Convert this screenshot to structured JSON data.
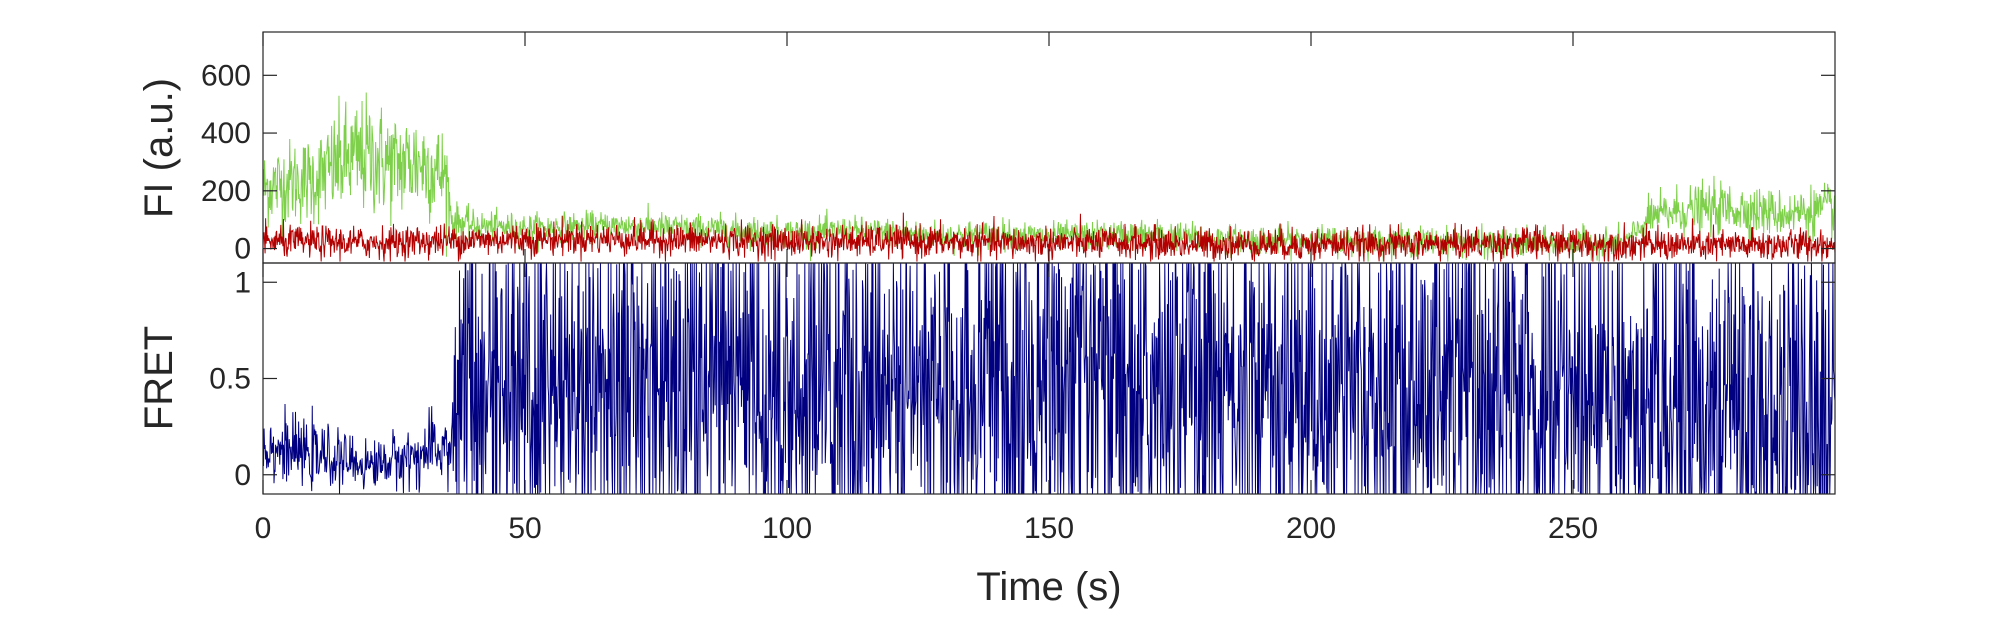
{
  "chart_data": [
    {
      "type": "line",
      "ylabel": "FI (a.u.)",
      "xlim": [
        0,
        300
      ],
      "ylim": [
        -50,
        750
      ],
      "yticks": [
        0,
        200,
        400,
        600
      ],
      "ytick_labels": [
        "0",
        "200",
        "400",
        "600"
      ],
      "grid": false,
      "colors": {
        "donor": "#7ed04b",
        "acceptor": "#b30000"
      },
      "series": [
        {
          "role": "donor",
          "x": [
            0,
            5,
            10,
            15,
            20,
            25,
            30,
            35,
            36,
            40,
            50,
            60,
            70,
            80,
            90,
            100,
            110,
            120,
            130,
            140,
            150,
            160,
            170,
            180,
            190,
            200,
            210,
            220,
            230,
            240,
            250,
            260,
            265,
            270,
            280,
            290,
            300
          ],
          "values": [
            210,
            230,
            240,
            300,
            320,
            290,
            300,
            250,
            100,
            80,
            70,
            75,
            80,
            70,
            65,
            55,
            60,
            55,
            45,
            50,
            40,
            45,
            50,
            35,
            30,
            30,
            25,
            25,
            20,
            15,
            20,
            20,
            110,
            130,
            140,
            120,
            140
          ]
        },
        {
          "role": "acceptor",
          "x": [
            0,
            20,
            40,
            60,
            80,
            100,
            120,
            140,
            160,
            180,
            200,
            220,
            240,
            260,
            280,
            300
          ],
          "values": [
            25,
            20,
            30,
            35,
            30,
            25,
            25,
            20,
            20,
            15,
            15,
            15,
            20,
            15,
            10,
            15
          ]
        }
      ]
    },
    {
      "type": "line",
      "xlabel": "Time (s)",
      "ylabel": "FRET",
      "xlim": [
        0,
        300
      ],
      "ylim": [
        -0.1,
        1.1
      ],
      "xticks": [
        0,
        50,
        100,
        150,
        200,
        250
      ],
      "xtick_labels": [
        "0",
        "50",
        "100",
        "150",
        "200",
        "250"
      ],
      "yticks": [
        0,
        0.5,
        1
      ],
      "ytick_labels": [
        "0",
        "0.5",
        "1"
      ],
      "grid": false,
      "colors": {
        "fret": "#000080"
      },
      "series": [
        {
          "role": "fret",
          "x": [
            0,
            10,
            20,
            30,
            36,
            37,
            50,
            100,
            150,
            200,
            250,
            260,
            270,
            300
          ],
          "values": [
            0.15,
            0.1,
            0.05,
            0.1,
            0.15,
            0.45,
            0.45,
            0.45,
            0.45,
            0.45,
            0.45,
            0.4,
            0.3,
            0.35
          ],
          "spread": [
            0.08,
            0.08,
            0.06,
            0.08,
            0.1,
            0.4,
            0.45,
            0.45,
            0.45,
            0.45,
            0.45,
            0.4,
            0.45,
            0.45
          ]
        }
      ]
    }
  ]
}
